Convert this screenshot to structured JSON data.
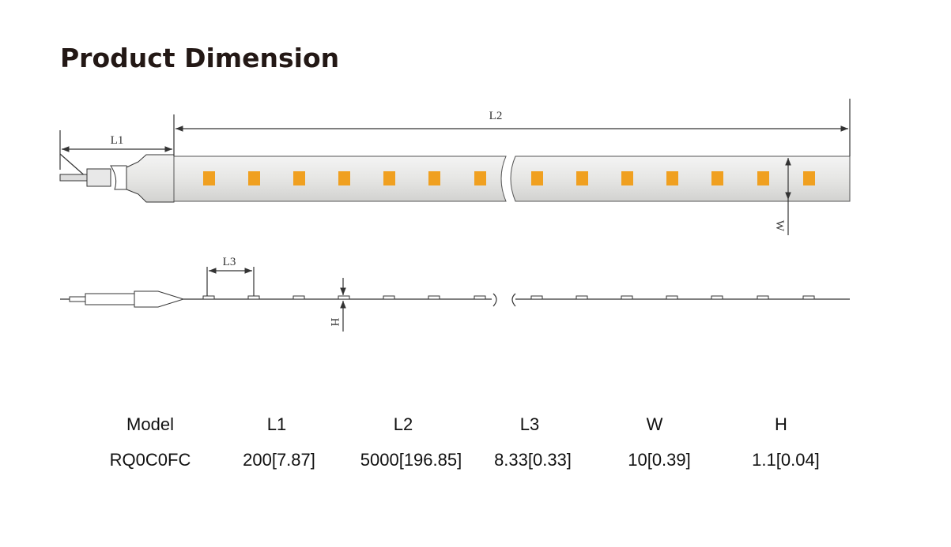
{
  "header": {
    "title": "Product Dimension"
  },
  "drawing": {
    "top_view": {
      "labels": [
        "L1",
        "L2",
        "W"
      ]
    },
    "side_view": {
      "labels": [
        "L3",
        "H"
      ]
    }
  },
  "table": {
    "columns": [
      "Model",
      "L1",
      "L2",
      "L3",
      "W",
      "H"
    ],
    "rows": [
      [
        "RQ0C0FC",
        "200[7.87]",
        "5000[196.85]",
        "8.33[0.33]",
        "10[0.39]",
        "1.1[0.04]"
      ]
    ]
  }
}
